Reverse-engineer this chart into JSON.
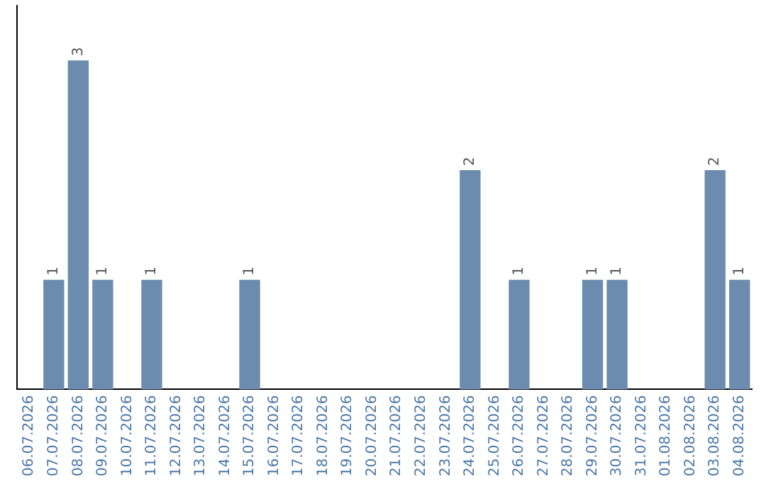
{
  "chart_data": {
    "type": "bar",
    "categories": [
      "06.07.2026",
      "07.07.2026",
      "08.07.2026",
      "09.07.2026",
      "10.07.2026",
      "11.07.2026",
      "12.07.2026",
      "13.07.2026",
      "14.07.2026",
      "15.07.2026",
      "16.07.2026",
      "17.07.2026",
      "18.07.2026",
      "19.07.2026",
      "20.07.2026",
      "21.07.2026",
      "22.07.2026",
      "23.07.2026",
      "24.07.2026",
      "25.07.2026",
      "26.07.2026",
      "27.07.2026",
      "28.07.2026",
      "29.07.2026",
      "30.07.2026",
      "31.07.2026",
      "01.08.2026",
      "02.08.2026",
      "03.08.2026",
      "04.08.2026"
    ],
    "values": [
      0,
      1,
      3,
      1,
      0,
      1,
      0,
      0,
      0,
      1,
      0,
      0,
      0,
      0,
      0,
      0,
      0,
      0,
      2,
      0,
      1,
      0,
      0,
      1,
      1,
      0,
      0,
      0,
      2,
      1
    ],
    "value_labels": [
      null,
      "1",
      "3",
      "1",
      null,
      "1",
      null,
      null,
      null,
      "1",
      null,
      null,
      null,
      null,
      null,
      null,
      null,
      null,
      "2",
      null,
      "1",
      null,
      null,
      "1",
      "1",
      null,
      null,
      null,
      "2",
      "1"
    ],
    "color": "#6b8cae",
    "tick_labels": "x",
    "grid": false,
    "legend": false
  }
}
